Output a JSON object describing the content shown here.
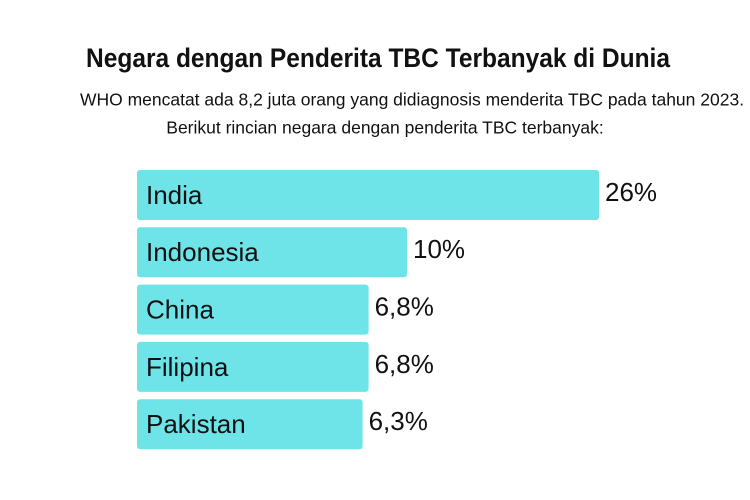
{
  "chart_data": {
    "type": "bar",
    "orientation": "horizontal",
    "title": "Negara dengan Penderita TBC Terbanyak di Dunia",
    "subtitle": [
      "WHO mencatat ada 8,2 juta orang yang didiagnosis menderita TBC pada tahun 2023.",
      "Berikut rincian negara dengan penderita TBC terbanyak:"
    ],
    "categories": [
      "India",
      "Indonesia",
      "China",
      "Filipina",
      "Pakistan"
    ],
    "values": [
      26,
      10,
      6.8,
      6.8,
      6.3
    ],
    "value_labels": [
      "26%",
      "10%",
      "6,8%",
      "6,8%",
      "6,3%"
    ],
    "color": "#6ee3e8"
  }
}
